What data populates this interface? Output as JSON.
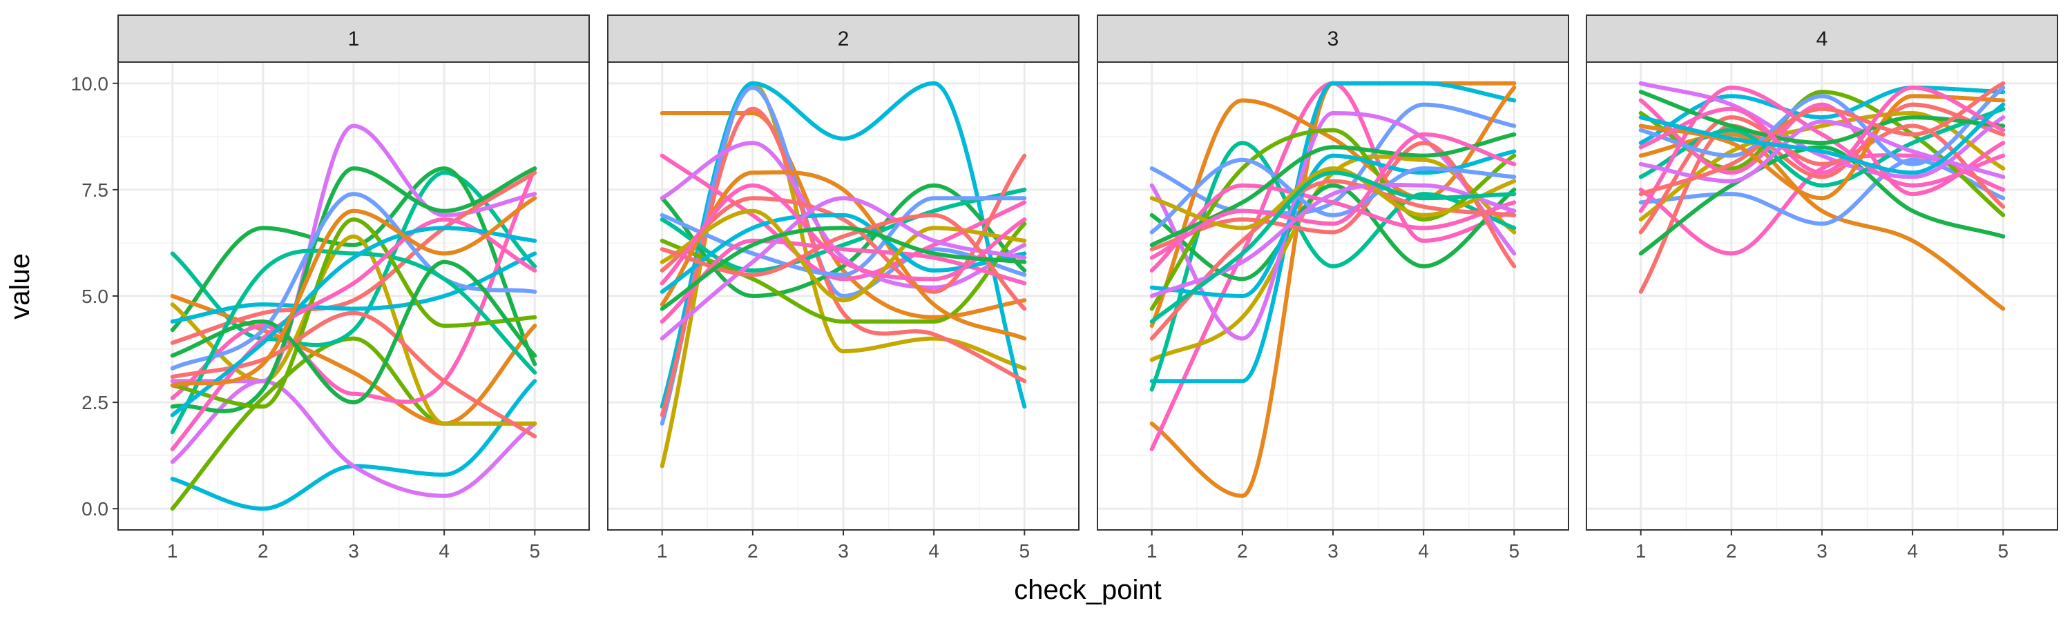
{
  "chart_data": {
    "type": "line",
    "title": "",
    "xlabel": "check_point",
    "ylabel": "value",
    "x": [
      1,
      2,
      3,
      4,
      5
    ],
    "xticks": [
      "1",
      "2",
      "3",
      "4",
      "5"
    ],
    "ylim": [
      -0.5,
      10.5
    ],
    "yticks": [
      "0.0",
      "2.5",
      "5.0",
      "7.5",
      "10.0"
    ],
    "ytick_values": [
      0,
      2.5,
      5,
      7.5,
      10
    ],
    "grid": true,
    "legend": "none",
    "curve": "smooth",
    "palette": [
      "#e6861c",
      "#c3a800",
      "#6bb100",
      "#19b24a",
      "#00bf95",
      "#00b8d8",
      "#6e9eff",
      "#d972f7",
      "#ff62bc",
      "#fb6f6f"
    ],
    "panels": [
      {
        "label": "1",
        "series": [
          {
            "color": "#00b8d8",
            "values": [
              0.7,
              0.0,
              1.0,
              0.8,
              3.0
            ]
          },
          {
            "color": "#d972f7",
            "values": [
              1.1,
              3.0,
              1.0,
              0.3,
              2.0
            ]
          },
          {
            "color": "#6bb100",
            "values": [
              0.0,
              2.6,
              4.0,
              2.0,
              2.0
            ]
          },
          {
            "color": "#00bf95",
            "values": [
              6.0,
              4.0,
              4.2,
              7.9,
              5.7
            ]
          },
          {
            "color": "#19b24a",
            "values": [
              4.2,
              6.6,
              6.2,
              8.0,
              3.4
            ]
          },
          {
            "color": "#e6861c",
            "values": [
              5.0,
              4.2,
              3.2,
              2.0,
              4.3
            ]
          },
          {
            "color": "#c3a800",
            "values": [
              4.8,
              3.0,
              6.4,
              2.0,
              2.0
            ]
          },
          {
            "color": "#d972f7",
            "values": [
              3.0,
              3.0,
              9.0,
              6.9,
              7.4
            ]
          },
          {
            "color": "#ff62bc",
            "values": [
              2.6,
              4.3,
              2.7,
              3.0,
              8.0
            ]
          },
          {
            "color": "#fb6f6f",
            "values": [
              3.9,
              4.6,
              4.9,
              6.6,
              7.9
            ]
          },
          {
            "color": "#19b24a",
            "values": [
              2.4,
              2.8,
              8.0,
              7.0,
              8.0
            ]
          },
          {
            "color": "#00b8d8",
            "values": [
              4.4,
              4.8,
              4.7,
              5.0,
              6.0
            ]
          },
          {
            "color": "#6e9eff",
            "values": [
              3.3,
              4.2,
              7.4,
              5.4,
              5.1
            ]
          },
          {
            "color": "#00bf95",
            "values": [
              1.8,
              5.6,
              6.0,
              5.4,
              3.2
            ]
          },
          {
            "color": "#6bb100",
            "values": [
              2.9,
              2.4,
              6.8,
              4.3,
              4.5
            ]
          },
          {
            "color": "#fb6f6f",
            "values": [
              3.1,
              3.5,
              4.6,
              3.0,
              1.7
            ]
          },
          {
            "color": "#ff62bc",
            "values": [
              1.4,
              4.0,
              5.3,
              6.8,
              5.6
            ]
          },
          {
            "color": "#19b24a",
            "values": [
              3.6,
              4.4,
              2.5,
              5.8,
              3.6
            ]
          },
          {
            "color": "#00b8d8",
            "values": [
              2.2,
              3.9,
              5.9,
              6.6,
              6.3
            ]
          },
          {
            "color": "#e6861c",
            "values": [
              2.9,
              3.4,
              7.0,
              6.0,
              7.3
            ]
          }
        ]
      },
      {
        "label": "2",
        "series": [
          {
            "color": "#e6861c",
            "values": [
              9.3,
              9.3,
              5.6,
              4.5,
              4.9
            ]
          },
          {
            "color": "#c3a800",
            "values": [
              1.0,
              10.0,
              3.7,
              4.0,
              3.3
            ]
          },
          {
            "color": "#00b8d8",
            "values": [
              2.4,
              10.0,
              8.7,
              10.0,
              2.4
            ]
          },
          {
            "color": "#6e9eff",
            "values": [
              2.0,
              9.9,
              5.0,
              6.1,
              5.5
            ]
          },
          {
            "color": "#fb6f6f",
            "values": [
              2.2,
              9.4,
              4.6,
              4.1,
              3.0
            ]
          },
          {
            "color": "#19b24a",
            "values": [
              7.3,
              5.0,
              5.7,
              7.6,
              5.6
            ]
          },
          {
            "color": "#00bf95",
            "values": [
              6.8,
              5.6,
              6.2,
              7.0,
              7.5
            ]
          },
          {
            "color": "#ff62bc",
            "values": [
              8.3,
              6.9,
              5.4,
              6.2,
              7.2
            ]
          },
          {
            "color": "#d972f7",
            "values": [
              7.3,
              8.6,
              5.9,
              5.2,
              6.2
            ]
          },
          {
            "color": "#6bb100",
            "values": [
              6.3,
              5.4,
              4.4,
              4.4,
              6.7
            ]
          },
          {
            "color": "#fb6f6f",
            "values": [
              5.6,
              7.3,
              6.8,
              5.1,
              8.3
            ]
          },
          {
            "color": "#e6861c",
            "values": [
              4.8,
              7.9,
              7.5,
              4.8,
              4.0
            ]
          },
          {
            "color": "#6e9eff",
            "values": [
              6.9,
              6.0,
              5.5,
              7.3,
              7.3
            ]
          },
          {
            "color": "#ff62bc",
            "values": [
              4.4,
              6.3,
              6.1,
              5.9,
              5.3
            ]
          },
          {
            "color": "#00b8d8",
            "values": [
              5.1,
              6.6,
              6.9,
              5.6,
              6.0
            ]
          },
          {
            "color": "#c3a800",
            "values": [
              5.8,
              7.0,
              4.9,
              6.6,
              6.3
            ]
          },
          {
            "color": "#d972f7",
            "values": [
              4.0,
              5.8,
              7.3,
              6.3,
              5.9
            ]
          },
          {
            "color": "#fb6f6f",
            "values": [
              6.1,
              5.5,
              6.4,
              6.9,
              4.7
            ]
          },
          {
            "color": "#ff62bc",
            "values": [
              5.3,
              7.6,
              5.8,
              5.4,
              6.8
            ]
          },
          {
            "color": "#19b24a",
            "values": [
              4.7,
              6.2,
              6.6,
              6.0,
              5.8
            ]
          }
        ]
      },
      {
        "label": "3",
        "series": [
          {
            "color": "#e6861c",
            "values": [
              2.0,
              0.3,
              10.0,
              10.0,
              10.0
            ]
          },
          {
            "color": "#ff62bc",
            "values": [
              1.4,
              6.0,
              10.0,
              6.3,
              7.0
            ]
          },
          {
            "color": "#00b8d8",
            "values": [
              3.0,
              3.0,
              10.0,
              10.0,
              9.6
            ]
          },
          {
            "color": "#6e9eff",
            "values": [
              8.0,
              7.0,
              7.2,
              9.5,
              9.0
            ]
          },
          {
            "color": "#e6861c",
            "values": [
              4.3,
              9.6,
              8.7,
              7.3,
              9.9
            ]
          },
          {
            "color": "#c3a800",
            "values": [
              3.5,
              4.5,
              7.9,
              8.2,
              6.5
            ]
          },
          {
            "color": "#00bf95",
            "values": [
              2.8,
              8.6,
              5.7,
              7.4,
              6.6
            ]
          },
          {
            "color": "#19b24a",
            "values": [
              6.9,
              5.4,
              7.6,
              5.7,
              7.5
            ]
          },
          {
            "color": "#d972f7",
            "values": [
              7.6,
              4.0,
              9.3,
              8.7,
              6.0
            ]
          },
          {
            "color": "#fb6f6f",
            "values": [
              6.1,
              6.8,
              6.5,
              8.6,
              5.7
            ]
          },
          {
            "color": "#6bb100",
            "values": [
              4.7,
              8.0,
              8.9,
              6.8,
              8.3
            ]
          },
          {
            "color": "#ff62bc",
            "values": [
              5.6,
              7.6,
              7.2,
              6.6,
              7.2
            ]
          },
          {
            "color": "#00b8d8",
            "values": [
              5.2,
              5.0,
              8.3,
              7.9,
              8.4
            ]
          },
          {
            "color": "#6e9eff",
            "values": [
              6.5,
              8.2,
              6.9,
              8.0,
              7.8
            ]
          },
          {
            "color": "#fb6f6f",
            "values": [
              4.0,
              6.3,
              7.7,
              7.1,
              6.9
            ]
          },
          {
            "color": "#19b24a",
            "values": [
              6.2,
              7.2,
              8.5,
              8.3,
              8.8
            ]
          },
          {
            "color": "#d972f7",
            "values": [
              5.0,
              5.8,
              7.4,
              7.6,
              7.0
            ]
          },
          {
            "color": "#c3a800",
            "values": [
              7.3,
              6.6,
              8.0,
              6.9,
              7.7
            ]
          },
          {
            "color": "#ff62bc",
            "values": [
              5.9,
              7.0,
              6.7,
              8.8,
              8.1
            ]
          },
          {
            "color": "#00bf95",
            "values": [
              4.4,
              6.0,
              7.9,
              7.3,
              7.4
            ]
          }
        ]
      },
      {
        "label": "4",
        "series": [
          {
            "color": "#e6861c",
            "values": [
              8.3,
              8.8,
              7.0,
              6.3,
              4.7
            ]
          },
          {
            "color": "#ff62bc",
            "values": [
              7.5,
              6.0,
              8.0,
              8.3,
              7.5
            ]
          },
          {
            "color": "#6e9eff",
            "values": [
              7.2,
              7.4,
              6.7,
              8.2,
              7.3
            ]
          },
          {
            "color": "#fb6f6f",
            "values": [
              5.1,
              9.0,
              7.8,
              9.5,
              8.8
            ]
          },
          {
            "color": "#19b24a",
            "values": [
              6.0,
              7.6,
              8.5,
              7.0,
              6.4
            ]
          },
          {
            "color": "#6bb100",
            "values": [
              9.3,
              8.0,
              9.8,
              8.8,
              6.9
            ]
          },
          {
            "color": "#00b8d8",
            "values": [
              8.6,
              9.7,
              9.2,
              9.9,
              9.8
            ]
          },
          {
            "color": "#d972f7",
            "values": [
              10.0,
              9.5,
              8.3,
              7.8,
              9.2
            ]
          },
          {
            "color": "#c3a800",
            "values": [
              6.8,
              8.4,
              9.0,
              9.3,
              8.0
            ]
          },
          {
            "color": "#00bf95",
            "values": [
              7.8,
              8.9,
              7.6,
              8.6,
              9.4
            ]
          },
          {
            "color": "#ff62bc",
            "values": [
              9.6,
              7.9,
              9.5,
              7.4,
              8.6
            ]
          },
          {
            "color": "#fb6f6f",
            "values": [
              6.5,
              9.2,
              8.1,
              9.0,
              7.1
            ]
          },
          {
            "color": "#6e9eff",
            "values": [
              8.9,
              8.3,
              9.7,
              8.1,
              9.9
            ]
          },
          {
            "color": "#ff62bc",
            "values": [
              7.0,
              9.9,
              8.8,
              7.6,
              8.3
            ]
          },
          {
            "color": "#e6861c",
            "values": [
              9.0,
              8.6,
              7.3,
              9.7,
              9.6
            ]
          },
          {
            "color": "#d972f7",
            "values": [
              8.1,
              7.7,
              9.1,
              8.4,
              7.8
            ]
          },
          {
            "color": "#19b24a",
            "values": [
              9.8,
              9.0,
              8.6,
              9.2,
              9.0
            ]
          },
          {
            "color": "#fb6f6f",
            "values": [
              7.4,
              8.1,
              9.4,
              8.8,
              10.0
            ]
          },
          {
            "color": "#ff62bc",
            "values": [
              8.5,
              9.4,
              7.9,
              9.9,
              8.9
            ]
          },
          {
            "color": "#00b8d8",
            "values": [
              9.2,
              8.7,
              8.4,
              7.9,
              9.5
            ]
          }
        ]
      }
    ]
  }
}
